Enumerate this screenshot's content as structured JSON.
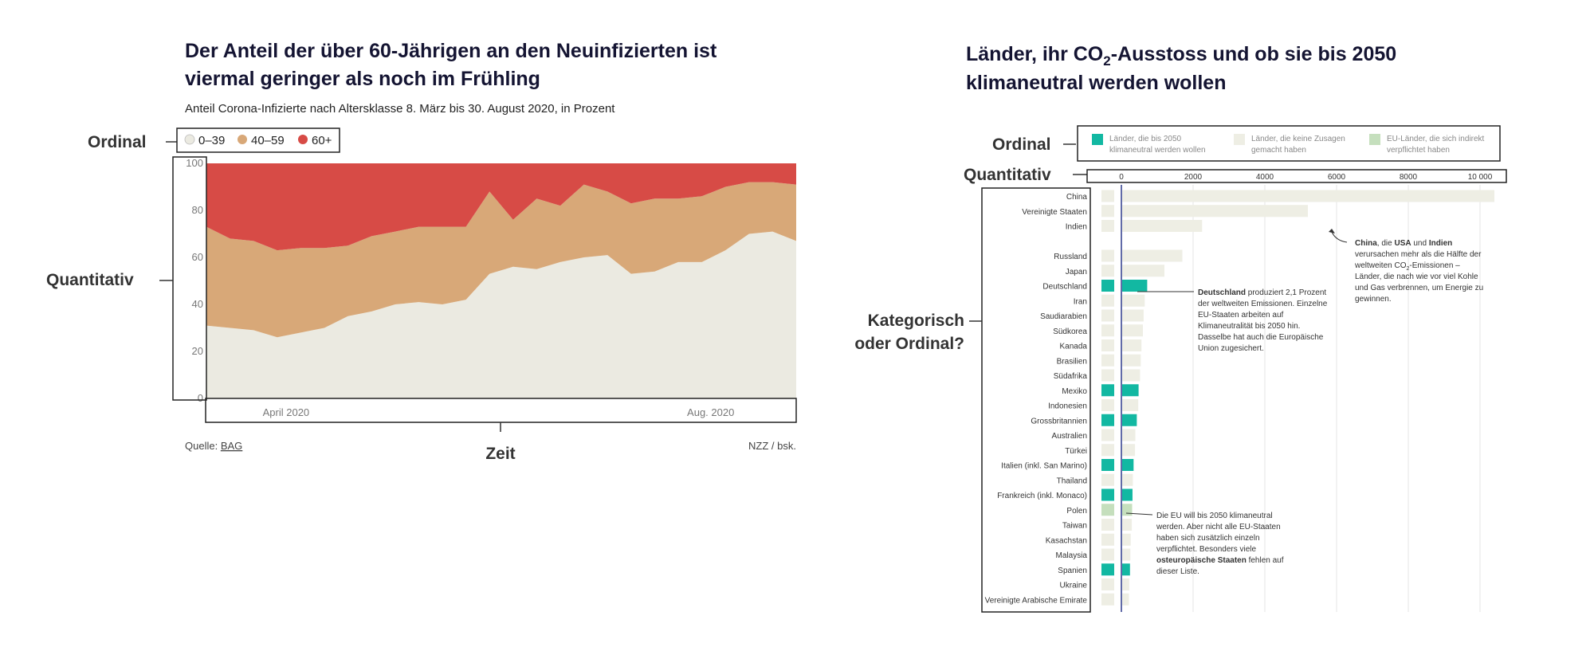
{
  "left": {
    "title_line1": "Der Anteil der über 60-Jährigen an den Neuinfizierten ist",
    "title_line2": "viermal geringer als noch im Frühling",
    "subtitle": "Anteil Corona-Infizierte nach Altersklasse 8. März bis 30. August 2020, in Prozent",
    "source_label": "Quelle: ",
    "source_link": "BAG",
    "credit": "NZZ / bsk.",
    "annotations": {
      "ordinal": "Ordinal",
      "quantitativ": "Quantitativ",
      "zeit": "Zeit"
    }
  },
  "right": {
    "title_line1_pre": "Länder, ihr CO",
    "title_line1_sub": "2",
    "title_line1_post": "-Ausstoss und ob sie bis 2050",
    "title_line2": "klimaneutral werden wollen",
    "annotations": {
      "ordinal": "Ordinal",
      "quantitativ": "Quantitativ",
      "kategorisch_1": "Kategorisch",
      "kategorisch_2": "oder Ordinal?"
    },
    "legend": {
      "item1_line1": "Länder, die bis 2050",
      "item1_line2": "klimaneutral werden wollen",
      "item2_line1": "Länder, die keine Zusagen",
      "item2_line2": "gemacht haben",
      "item3_line1": "EU-Länder, die sich indirekt",
      "item3_line2": "verpflichtet haben"
    },
    "note_china": {
      "l1_b1": "China",
      "l1_m": ", die ",
      "l1_b2": "USA",
      "l1_m2": " und ",
      "l1_b3": "Indien",
      "l2": "verursachen  mehr als die Hälfte der",
      "l3_pre": "weltweiten CO",
      "l3_sub": "2",
      "l3_post": "-Emissionen –",
      "l4": "Länder, die nach wie vor viel Kohle",
      "l5": "und Gas verbrennen, um Energie zu",
      "l6": "gewinnen."
    },
    "note_de": {
      "l1_b": "Deutschland",
      "l1_post": " produziert 2,1 Prozent",
      "l2": "der weltweiten Emissionen. Einzelne",
      "l3": "EU-Staaten arbeiten auf",
      "l4": "Klimaneutralität bis 2050 hin.",
      "l5": "Dasselbe hat auch die Europäische",
      "l6": "Union zugesichert."
    },
    "note_eu": {
      "l1": "Die EU will bis 2050 klimaneutral",
      "l2": "werden. Aber nicht alle EU-Staaten",
      "l3": "haben sich zusätzlich einzeln",
      "l4": "verpflichtet. Besonders viele",
      "l5_b": "osteuropäische Staaten",
      "l5_post": " fehlen auf",
      "l6": "dieser Liste."
    }
  },
  "colors": {
    "age_0_39": "#ebeae1",
    "age_40_59": "#d8a878",
    "age_60_plus": "#d74b46",
    "neutral": "#eeeee4",
    "teal": "#12b8a2",
    "eu_green": "#c5dfbd"
  },
  "chart_data": [
    {
      "type": "area",
      "stacked": true,
      "x": [
        "08.03.",
        "15.03.",
        "22.03.",
        "29.03.",
        "05.04.",
        "12.04.",
        "19.04.",
        "26.04.",
        "03.05.",
        "10.05.",
        "17.05.",
        "24.05.",
        "31.05.",
        "07.06.",
        "14.06.",
        "21.06.",
        "28.06.",
        "05.07.",
        "12.07.",
        "19.07.",
        "26.07.",
        "02.08.",
        "09.08.",
        "16.08.",
        "23.08.",
        "30.08."
      ],
      "x_tick_labels": [
        "April 2020",
        "Aug. 2020"
      ],
      "ylim": [
        0,
        100
      ],
      "y_ticks": [
        0,
        20,
        40,
        60,
        80,
        100
      ],
      "legend": [
        "0–39",
        "40–59",
        "60+"
      ],
      "legend_position": "top-left",
      "series": [
        {
          "name": "0–39",
          "values": [
            31,
            30,
            29,
            26,
            28,
            30,
            35,
            37,
            40,
            41,
            40,
            42,
            53,
            56,
            55,
            58,
            60,
            61,
            53,
            54,
            58,
            58,
            63,
            70,
            71,
            67
          ]
        },
        {
          "name": "40–59",
          "values": [
            42,
            38,
            38,
            37,
            36,
            34,
            30,
            32,
            31,
            32,
            33,
            31,
            35,
            20,
            30,
            24,
            31,
            27,
            30,
            31,
            27,
            28,
            27,
            22,
            21,
            24
          ]
        },
        {
          "name": "60+",
          "values": [
            27,
            32,
            33,
            37,
            36,
            36,
            35,
            31,
            29,
            27,
            27,
            27,
            12,
            24,
            15,
            18,
            9,
            12,
            17,
            15,
            15,
            14,
            10,
            8,
            8,
            9
          ]
        }
      ]
    },
    {
      "type": "bar",
      "orientation": "horizontal",
      "xlim": [
        0,
        11000
      ],
      "x_ticks": [
        0,
        2000,
        4000,
        6000,
        8000,
        10000
      ],
      "x_tick_labels": [
        "0",
        "2000",
        "4000",
        "6000",
        "8000",
        "10 000"
      ],
      "categories": [
        "China",
        "Vereinigte Staaten",
        "Indien",
        "",
        "Russland",
        "Japan",
        "Deutschland",
        "Iran",
        "Saudiarabien",
        "Südkorea",
        "Kanada",
        "Brasilien",
        "Südafrika",
        "Mexiko",
        "Indonesien",
        "Grossbritannien",
        "Australien",
        "Türkei",
        "Italien (inkl. San Marino)",
        "Thailand",
        "Frankreich (inkl. Monaco)",
        "Polen",
        "Taiwan",
        "Kasachstan",
        "Malaysia",
        "Spanien",
        "Ukraine",
        "Vereinigte Arabische Emirate"
      ],
      "values": [
        10400,
        5200,
        2250,
        null,
        1700,
        1200,
        720,
        650,
        620,
        600,
        560,
        540,
        520,
        480,
        470,
        430,
        390,
        380,
        340,
        320,
        310,
        300,
        290,
        260,
        250,
        240,
        220,
        210
      ],
      "status": [
        "none",
        "none",
        "none",
        "",
        "none",
        "none",
        "neutral2050",
        "none",
        "none",
        "none",
        "none",
        "none",
        "none",
        "neutral2050",
        "none",
        "neutral2050",
        "none",
        "none",
        "neutral2050",
        "none",
        "neutral2050",
        "eu",
        "none",
        "none",
        "none",
        "neutral2050",
        "none",
        "none"
      ],
      "legend": [
        "Länder, die bis 2050 klimaneutral werden wollen",
        "Länder, die keine Zusagen gemacht haben",
        "EU-Länder, die sich indirekt verpflichtet haben"
      ],
      "legend_position": "top"
    }
  ]
}
